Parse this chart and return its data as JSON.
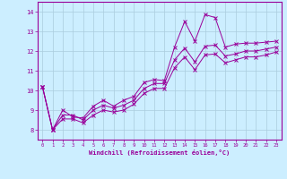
{
  "xlabel": "Windchill (Refroidissement éolien,°C)",
  "bg_color": "#cceeff",
  "line_color": "#990099",
  "grid_color": "#aaccdd",
  "x_values": [
    0,
    1,
    2,
    3,
    4,
    5,
    6,
    7,
    8,
    9,
    10,
    11,
    12,
    13,
    14,
    15,
    16,
    17,
    18,
    19,
    20,
    21,
    22,
    23
  ],
  "line1_y": [
    10.2,
    8.0,
    9.0,
    8.65,
    8.6,
    9.2,
    9.5,
    9.2,
    9.5,
    9.7,
    10.4,
    10.55,
    10.5,
    12.2,
    13.5,
    12.5,
    13.85,
    13.7,
    12.2,
    12.35,
    12.4,
    12.4,
    12.45,
    12.5
  ],
  "line2_y": [
    10.2,
    8.0,
    8.75,
    8.75,
    8.5,
    9.0,
    9.25,
    9.1,
    9.25,
    9.5,
    10.1,
    10.35,
    10.35,
    11.55,
    12.15,
    11.45,
    12.25,
    12.3,
    11.75,
    11.85,
    12.0,
    12.0,
    12.1,
    12.2
  ],
  "line3_y": [
    10.2,
    8.0,
    8.55,
    8.55,
    8.35,
    8.75,
    9.0,
    8.9,
    9.0,
    9.3,
    9.85,
    10.1,
    10.1,
    11.15,
    11.7,
    11.05,
    11.8,
    11.85,
    11.4,
    11.55,
    11.7,
    11.7,
    11.8,
    11.95
  ],
  "xlim": [
    -0.5,
    23.5
  ],
  "ylim": [
    7.5,
    14.5
  ],
  "yticks": [
    8,
    9,
    10,
    11,
    12,
    13,
    14
  ],
  "xticks": [
    0,
    1,
    2,
    3,
    4,
    5,
    6,
    7,
    8,
    9,
    10,
    11,
    12,
    13,
    14,
    15,
    16,
    17,
    18,
    19,
    20,
    21,
    22,
    23
  ]
}
